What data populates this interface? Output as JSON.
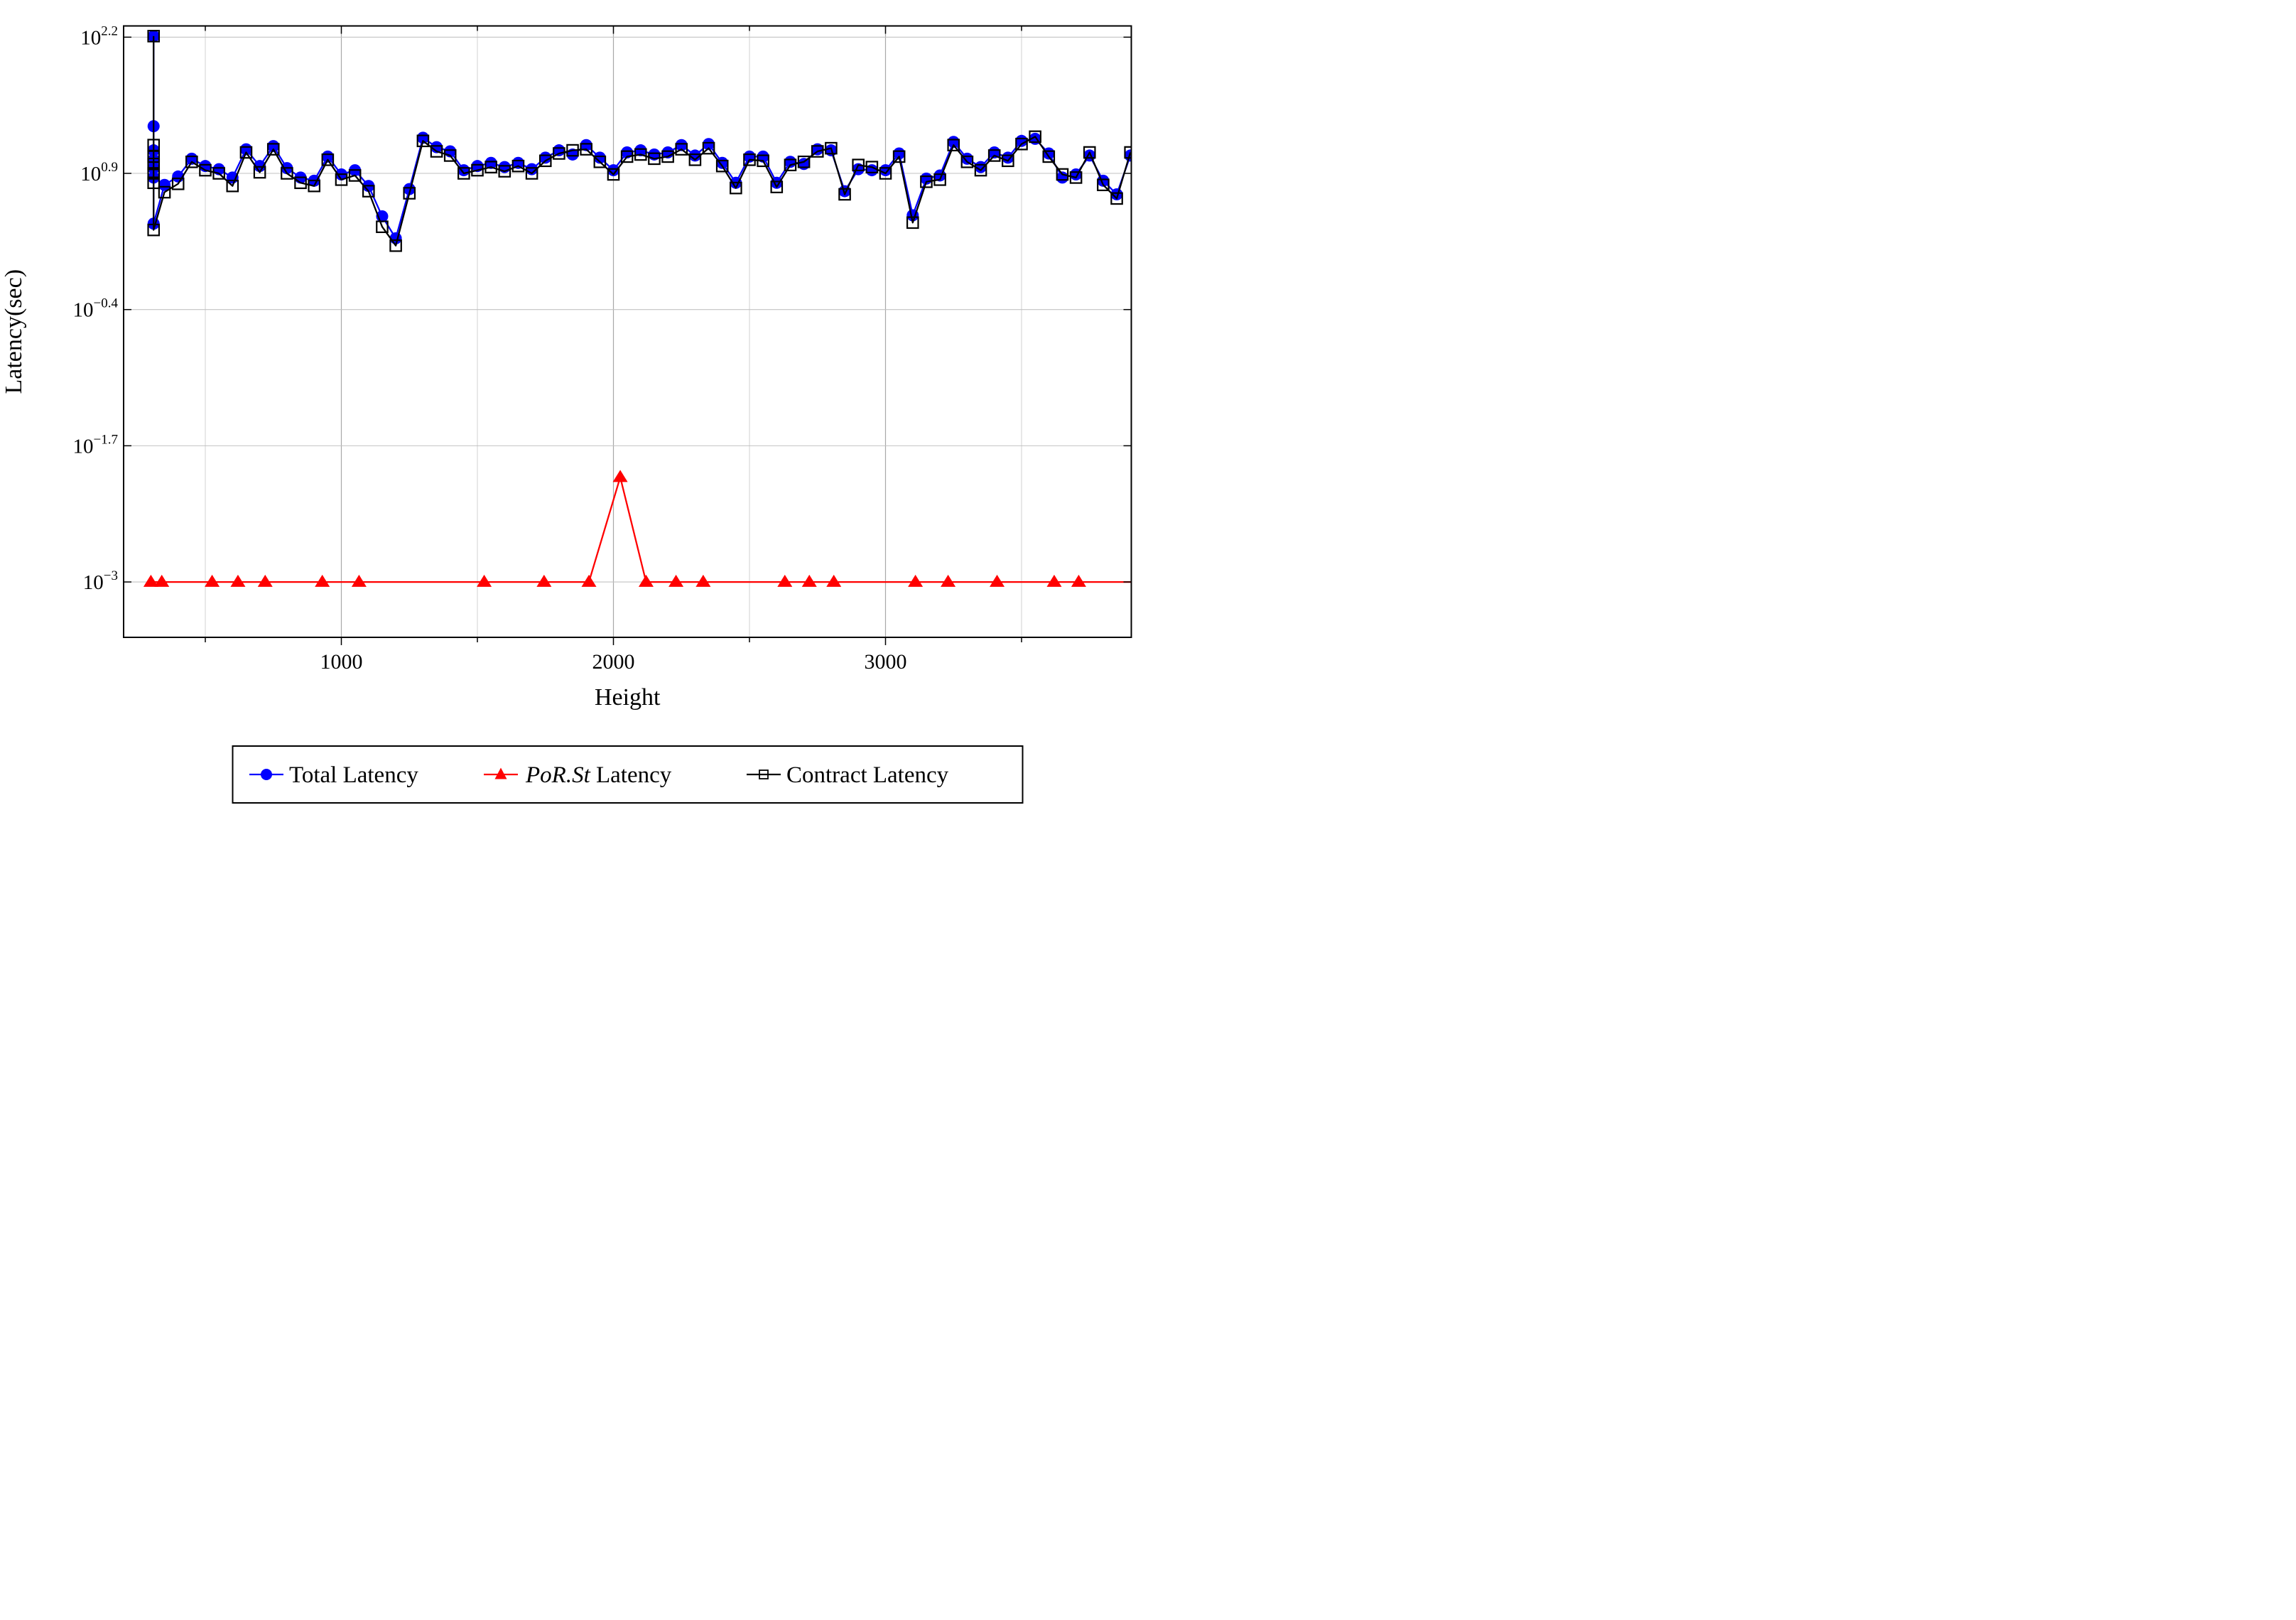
{
  "figure": {
    "xlabel": "Height",
    "ylabel": "Latency(sec)",
    "background": "#ffffff"
  },
  "legend": {
    "items": [
      {
        "name": "total-latency",
        "marker": "circle",
        "color": "#0000ff",
        "parts": [
          {
            "text": "Total Latency",
            "italic": false
          }
        ]
      },
      {
        "name": "por-st-latency",
        "marker": "triangle",
        "color": "#ff0000",
        "parts": [
          {
            "text": "PoR.St",
            "italic": true
          },
          {
            "text": " Latency",
            "italic": false
          }
        ]
      },
      {
        "name": "contract-latency",
        "marker": "square-open",
        "color": "#000000",
        "parts": [
          {
            "text": "Contract Latency",
            "italic": false
          }
        ]
      }
    ]
  },
  "chart_data": {
    "type": "line",
    "title": "",
    "xlabel": "Height",
    "ylabel": "Latency(sec)",
    "y_scale": "log10",
    "xlim": [
      200,
      3905
    ],
    "ylim_log10": [
      -3.53,
      2.31
    ],
    "x_major_ticks": [
      1000,
      2000,
      3000
    ],
    "x_major_tick_labels": [
      "1000",
      "2000",
      "3000"
    ],
    "x_minor_ticks": [
      500,
      1500,
      2500,
      3500
    ],
    "y_ticks": [
      {
        "log10": 2.2,
        "base": "10",
        "exp": "2.2"
      },
      {
        "log10": 0.9,
        "base": "10",
        "exp": "0.9"
      },
      {
        "log10": -0.4,
        "base": "10",
        "exp": "−0.4"
      },
      {
        "log10": -1.7,
        "base": "10",
        "exp": "−1.7"
      },
      {
        "log10": -3,
        "base": "10",
        "exp": "−3"
      }
    ],
    "grid": true,
    "legend_position": "below",
    "series": [
      {
        "name": "Total Latency",
        "color": "#0000ff",
        "marker": "circle",
        "x": [
          310,
          310,
          310,
          310,
          310,
          310,
          310,
          350,
          400,
          450,
          500,
          550,
          600,
          650,
          700,
          750,
          800,
          850,
          900,
          950,
          1000,
          1050,
          1100,
          1150,
          1200,
          1250,
          1300,
          1350,
          1400,
          1450,
          1500,
          1550,
          1600,
          1650,
          1700,
          1750,
          1800,
          1850,
          1900,
          1950,
          2000,
          2050,
          2100,
          2150,
          2200,
          2250,
          2300,
          2350,
          2400,
          2450,
          2500,
          2550,
          2600,
          2650,
          2700,
          2750,
          2800,
          2850,
          2900,
          2950,
          3000,
          3050,
          3100,
          3150,
          3200,
          3250,
          3300,
          3350,
          3400,
          3450,
          3500,
          3550,
          3600,
          3650,
          3700,
          3750,
          3800,
          3850,
          3900
        ],
        "log10_y": [
          2.21,
          1.35,
          1.12,
          1.03,
          0.95,
          0.86,
          0.42,
          0.79,
          0.87,
          1.04,
          0.97,
          0.94,
          0.86,
          1.13,
          0.97,
          1.16,
          0.95,
          0.86,
          0.83,
          1.06,
          0.89,
          0.93,
          0.78,
          0.49,
          0.28,
          0.75,
          1.24,
          1.15,
          1.11,
          0.93,
          0.97,
          1.0,
          0.96,
          1.0,
          0.94,
          1.05,
          1.12,
          1.08,
          1.17,
          1.05,
          0.93,
          1.1,
          1.12,
          1.08,
          1.1,
          1.17,
          1.07,
          1.18,
          1.0,
          0.81,
          1.06,
          1.06,
          0.81,
          1.01,
          0.99,
          1.13,
          1.12,
          0.73,
          0.94,
          0.93,
          0.93,
          1.09,
          0.5,
          0.85,
          0.88,
          1.2,
          1.04,
          0.96,
          1.1,
          1.05,
          1.21,
          1.23,
          1.09,
          0.86,
          0.89,
          1.07,
          0.83,
          0.7,
          1.07
        ]
      },
      {
        "name": "PoR.St Latency",
        "color": "#ff0000",
        "marker": "triangle",
        "x": [
          300,
          340,
          525,
          620,
          720,
          930,
          1065,
          1525,
          1745,
          1910,
          2025,
          2120,
          2230,
          2330,
          2630,
          2720,
          2810,
          3110,
          3230,
          3410,
          3620,
          3710,
          3905
        ],
        "log10_y": [
          -3,
          -3,
          -3,
          -3,
          -3,
          -3,
          -3,
          -3,
          -3,
          -3,
          -2.0,
          -3,
          -3,
          -3,
          -3,
          -3,
          -3,
          -3,
          -3,
          -3,
          -3,
          -3,
          -3
        ],
        "x_no_marker": [
          3905
        ]
      },
      {
        "name": "Contract Latency",
        "color": "#000000",
        "marker": "square-open",
        "x": [
          310,
          310,
          310,
          310,
          310,
          310,
          310,
          350,
          400,
          450,
          500,
          550,
          600,
          650,
          700,
          750,
          800,
          850,
          900,
          950,
          1000,
          1050,
          1100,
          1150,
          1200,
          1250,
          1300,
          1350,
          1400,
          1450,
          1500,
          1550,
          1600,
          1650,
          1700,
          1750,
          1800,
          1850,
          1900,
          1950,
          2000,
          2050,
          2100,
          2150,
          2200,
          2250,
          2300,
          2350,
          2400,
          2450,
          2500,
          2550,
          2600,
          2650,
          2700,
          2750,
          2800,
          2850,
          2900,
          2950,
          3000,
          3050,
          3100,
          3150,
          3200,
          3250,
          3300,
          3350,
          3400,
          3450,
          3500,
          3550,
          3600,
          3650,
          3700,
          3750,
          3800,
          3850,
          3900
        ],
        "log10_y": [
          2.21,
          1.17,
          1.06,
          0.99,
          0.9,
          0.81,
          0.36,
          0.72,
          0.8,
          1.01,
          0.93,
          0.9,
          0.78,
          1.1,
          0.91,
          1.13,
          0.9,
          0.81,
          0.78,
          1.03,
          0.84,
          0.88,
          0.73,
          0.39,
          0.21,
          0.71,
          1.21,
          1.11,
          1.07,
          0.9,
          0.93,
          0.96,
          0.92,
          0.97,
          0.9,
          1.02,
          1.09,
          1.12,
          1.13,
          1.01,
          0.89,
          1.06,
          1.08,
          1.04,
          1.06,
          1.13,
          1.03,
          1.14,
          0.97,
          0.76,
          1.03,
          1.02,
          0.77,
          0.98,
          1.01,
          1.11,
          1.14,
          0.7,
          0.98,
          0.96,
          0.9,
          1.06,
          0.43,
          0.82,
          0.84,
          1.17,
          1.01,
          0.93,
          1.07,
          1.02,
          1.18,
          1.25,
          1.06,
          0.89,
          0.86,
          1.1,
          0.79,
          0.66,
          1.1
        ]
      }
    ]
  }
}
